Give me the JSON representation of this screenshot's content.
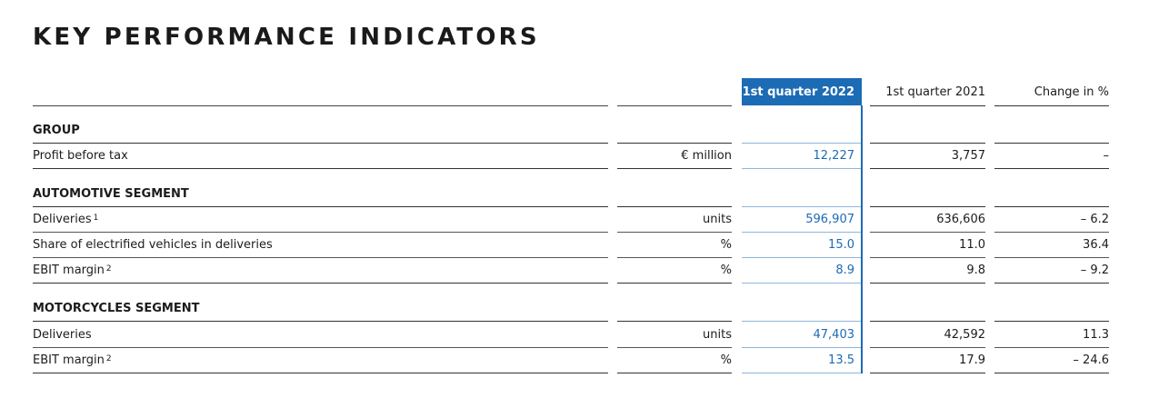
{
  "title": "KEY PERFORMANCE INDICATORS",
  "columns": {
    "q1_2022": "1st quarter 2022",
    "q1_2021": "1st quarter 2021",
    "change": "Change in %"
  },
  "sections": {
    "group": {
      "heading": "GROUP",
      "rows": [
        {
          "label": "Profit before tax",
          "sup": "",
          "unit": "€ million",
          "q1_2022": "12,227",
          "q1_2021": "3,757",
          "change": "–"
        }
      ]
    },
    "automotive": {
      "heading": "AUTOMOTIVE SEGMENT",
      "rows": [
        {
          "label": "Deliveries",
          "sup": "1",
          "unit": "units",
          "q1_2022": "596,907",
          "q1_2021": "636,606",
          "change": "– 6.2"
        },
        {
          "label": "Share of electrified vehicles in deliveries",
          "sup": "",
          "unit": "%",
          "q1_2022": "15.0",
          "q1_2021": "11.0",
          "change": "36.4"
        },
        {
          "label": "EBIT margin",
          "sup": "2",
          "unit": "%",
          "q1_2022": "8.9",
          "q1_2021": "9.8",
          "change": "– 9.2"
        }
      ]
    },
    "motorcycles": {
      "heading": "MOTORCYCLES SEGMENT",
      "rows": [
        {
          "label": "Deliveries",
          "sup": "",
          "unit": "units",
          "q1_2022": "47,403",
          "q1_2021": "42,592",
          "change": "11.3"
        },
        {
          "label": "EBIT margin",
          "sup": "2",
          "unit": "%",
          "q1_2022": "13.5",
          "q1_2021": "17.9",
          "change": "– 24.6"
        }
      ]
    }
  }
}
